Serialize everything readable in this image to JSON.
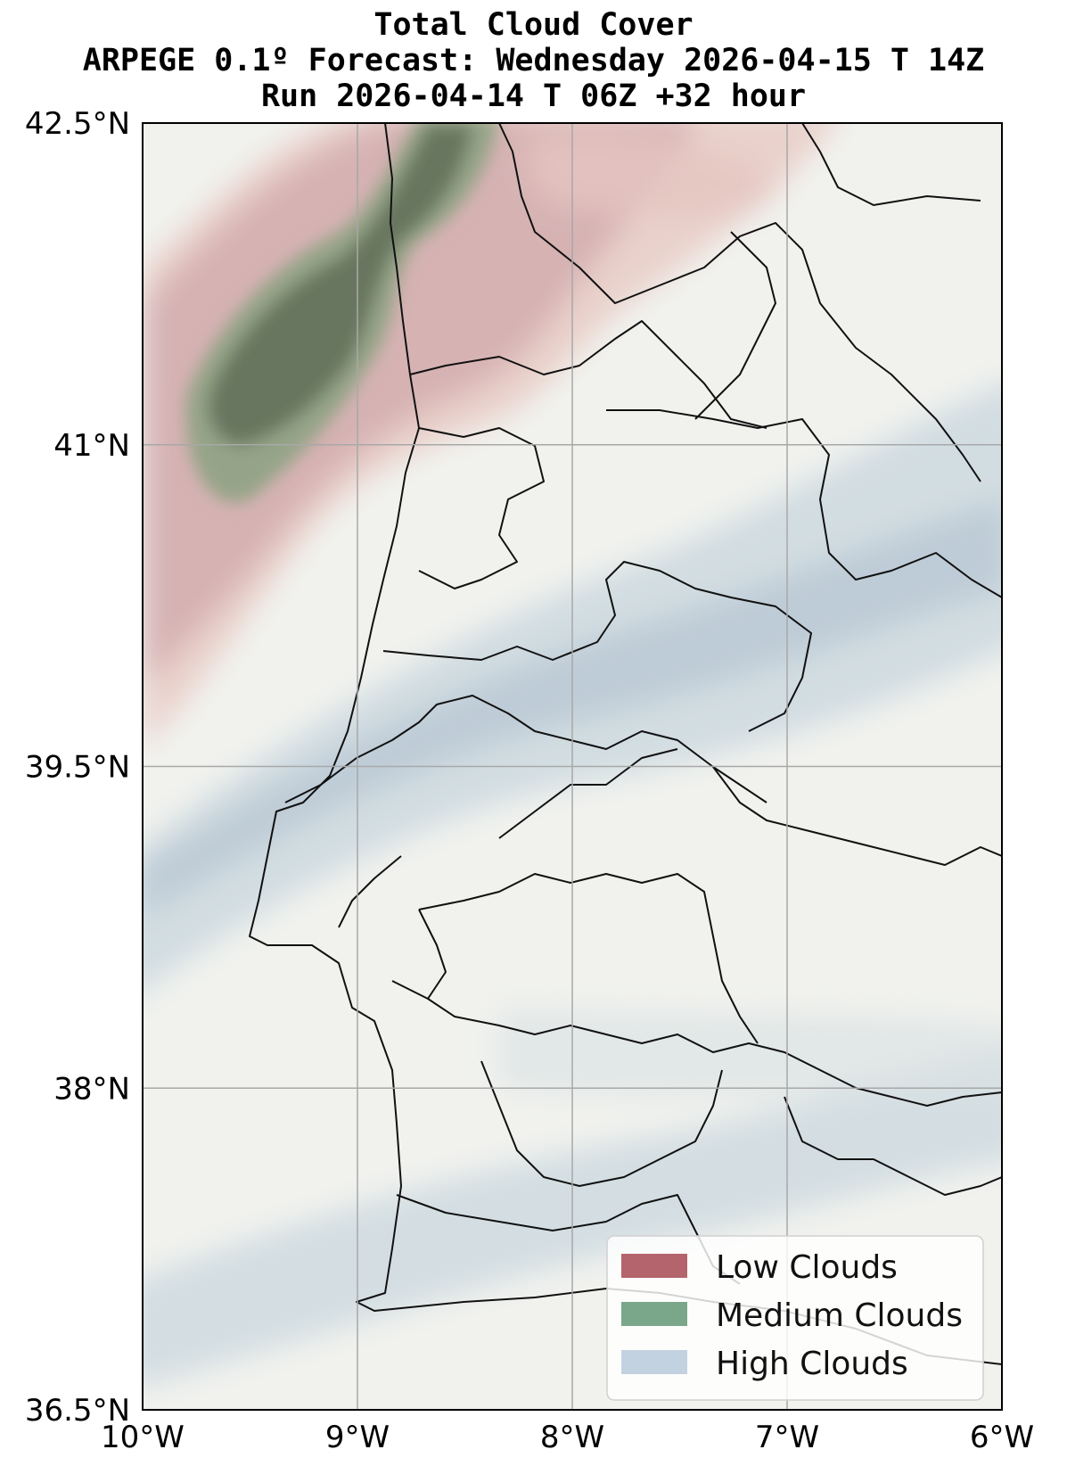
{
  "title": {
    "line1": "Total Cloud Cover",
    "line2": "ARPEGE 0.1º Forecast: Wednesday 2026-04-15 T 14Z",
    "line3": "Run 2026-04-14 T 06Z +32 hour"
  },
  "map": {
    "lon_range": [
      -10,
      -6
    ],
    "lat_range": [
      36.5,
      42.5
    ],
    "grid": true,
    "background_color": "#f1f2ee",
    "x_ticks": [
      {
        "value": -10,
        "label": "10°W"
      },
      {
        "value": -9,
        "label": "9°W"
      },
      {
        "value": -8,
        "label": "8°W"
      },
      {
        "value": -7,
        "label": "7°W"
      },
      {
        "value": -6,
        "label": "6°W"
      }
    ],
    "y_ticks": [
      {
        "value": 42.5,
        "label": "42.5°N"
      },
      {
        "value": 41,
        "label": "41°N"
      },
      {
        "value": 39.5,
        "label": "39.5°N"
      },
      {
        "value": 38,
        "label": "38°N"
      },
      {
        "value": 36.5,
        "label": "36.5°N"
      }
    ]
  },
  "legend": {
    "placement": "bottom-right",
    "items": [
      {
        "label": "Low Clouds",
        "color": "#b4646c"
      },
      {
        "label": "Medium Clouds",
        "color": "#7aa68a"
      },
      {
        "label": "High Clouds",
        "color": "#c3d2e0"
      }
    ]
  }
}
